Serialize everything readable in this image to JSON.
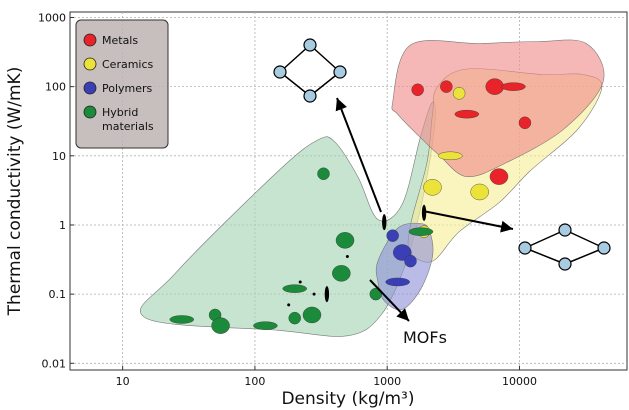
{
  "chart_data": {
    "type": "scatter",
    "title": "",
    "xlabel": "Density (kg/m³)",
    "ylabel": "Thermal conductivity (W/mK)",
    "xscale": "log",
    "yscale": "log",
    "xlim": [
      4,
      65000
    ],
    "ylim": [
      0.008,
      1200
    ],
    "grid": true,
    "legend_position": "top-left",
    "x_ticks": [
      {
        "value": 10,
        "label": "10"
      },
      {
        "value": 100,
        "label": "100"
      },
      {
        "value": 1000,
        "label": "1000"
      },
      {
        "value": 10000,
        "label": "10000"
      }
    ],
    "y_ticks": [
      {
        "value": 0.01,
        "label": "0.01"
      },
      {
        "value": 0.1,
        "label": "0.1"
      },
      {
        "value": 1,
        "label": "1"
      },
      {
        "value": 10,
        "label": "10"
      },
      {
        "value": 100,
        "label": "100"
      },
      {
        "value": 1000,
        "label": "1000"
      }
    ],
    "series": [
      {
        "name": "Metals",
        "color": "#e8232a",
        "envelope_color": "#f08a8a",
        "envelope": [
          [
            1100,
            60
          ],
          [
            1500,
            400
          ],
          [
            5000,
            420
          ],
          [
            14000,
            450
          ],
          [
            32000,
            420
          ],
          [
            43000,
            120
          ],
          [
            22000,
            25
          ],
          [
            8000,
            8
          ],
          [
            4000,
            5
          ],
          [
            2500,
            10
          ],
          [
            1800,
            18
          ],
          [
            1200,
            40
          ]
        ],
        "points": [
          {
            "x": 1700,
            "y": 90
          },
          {
            "x": 6500,
            "y": 100
          },
          {
            "x": 9000,
            "y": 100
          },
          {
            "x": 11000,
            "y": 30
          },
          {
            "x": 7000,
            "y": 5
          },
          {
            "x": 4000,
            "y": 40
          },
          {
            "x": 2800,
            "y": 100
          }
        ]
      },
      {
        "name": "Ceramics",
        "color": "#ece33a",
        "envelope_color": "#f7ee96",
        "envelope": [
          [
            2400,
            100
          ],
          [
            4000,
            180
          ],
          [
            15000,
            150
          ],
          [
            30000,
            150
          ],
          [
            42000,
            100
          ],
          [
            28000,
            25
          ],
          [
            12000,
            6
          ],
          [
            7000,
            2.1
          ],
          [
            3500,
            0.8
          ],
          [
            2200,
            0.3
          ],
          [
            1500,
            0.4
          ],
          [
            1500,
            1
          ],
          [
            2000,
            8
          ],
          [
            2200,
            40
          ]
        ],
        "points": [
          {
            "x": 1900,
            "y": 0.8
          },
          {
            "x": 2200,
            "y": 3.5
          },
          {
            "x": 3000,
            "y": 10
          },
          {
            "x": 3500,
            "y": 80
          },
          {
            "x": 5000,
            "y": 3
          }
        ]
      },
      {
        "name": "Polymers",
        "color": "#3b3fb5",
        "envelope_color": "#8f92d8",
        "envelope": [
          [
            850,
            0.3
          ],
          [
            1200,
            0.9
          ],
          [
            1800,
            1.05
          ],
          [
            2100,
            0.8
          ],
          [
            2200,
            0.35
          ],
          [
            1800,
            0.12
          ],
          [
            1300,
            0.06
          ],
          [
            950,
            0.08
          ],
          [
            850,
            0.15
          ]
        ],
        "points": [
          {
            "x": 1100,
            "y": 0.7
          },
          {
            "x": 1300,
            "y": 0.4
          },
          {
            "x": 1200,
            "y": 0.15
          },
          {
            "x": 1500,
            "y": 0.3
          }
        ]
      },
      {
        "name": "Hybrid materials",
        "color": "#1b8a3a",
        "envelope_color": "#a3d4b1",
        "envelope": [
          [
            15,
            0.045
          ],
          [
            150,
            0.03
          ],
          [
            500,
            0.025
          ],
          [
            900,
            0.05
          ],
          [
            1400,
            0.3
          ],
          [
            1900,
            3
          ],
          [
            2300,
            30
          ],
          [
            2200,
            60
          ],
          [
            1800,
            20
          ],
          [
            1300,
            2
          ],
          [
            850,
            1.2
          ],
          [
            600,
            5
          ],
          [
            400,
            16
          ],
          [
            300,
            17
          ],
          [
            150,
            6
          ],
          [
            25,
            0.2
          ]
        ],
        "points": [
          {
            "x": 330,
            "y": 5.5
          },
          {
            "x": 480,
            "y": 0.6
          },
          {
            "x": 28,
            "y": 0.043
          },
          {
            "x": 50,
            "y": 0.05
          },
          {
            "x": 55,
            "y": 0.035
          },
          {
            "x": 120,
            "y": 0.035
          },
          {
            "x": 200,
            "y": 0.045
          },
          {
            "x": 270,
            "y": 0.05
          },
          {
            "x": 200,
            "y": 0.12
          },
          {
            "x": 820,
            "y": 0.1
          },
          {
            "x": 450,
            "y": 0.2
          },
          {
            "x": 1800,
            "y": 0.8
          }
        ]
      }
    ],
    "mofs": {
      "label": "MOFs",
      "points": [
        {
          "x": 280,
          "y": 0.1
        },
        {
          "x": 180,
          "y": 0.07
        },
        {
          "x": 220,
          "y": 0.15
        },
        {
          "x": 500,
          "y": 0.35
        }
      ]
    },
    "highlight_points": [
      {
        "x": 950,
        "y": 1.1
      },
      {
        "x": 1900,
        "y": 1.5
      },
      {
        "x": 350,
        "y": 0.1
      }
    ]
  }
}
